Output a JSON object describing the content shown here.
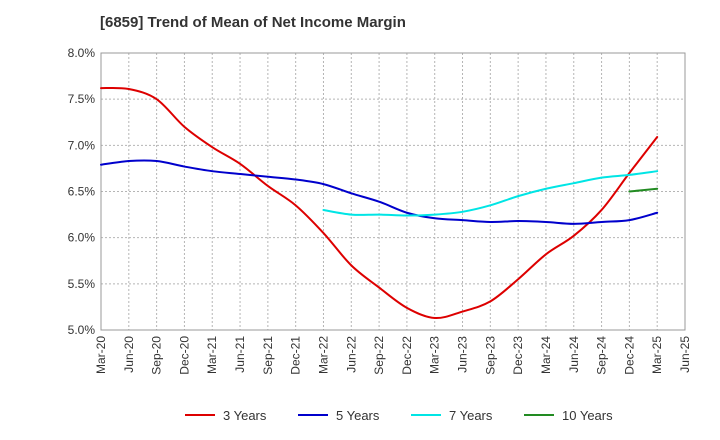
{
  "chart_data": {
    "type": "line",
    "title": "[6859]  Trend of Mean of Net Income Margin",
    "xlabel": "",
    "ylabel": "",
    "ylim": [
      5.0,
      8.0
    ],
    "y_ticks": [
      "5.0%",
      "5.5%",
      "6.0%",
      "6.5%",
      "7.0%",
      "7.5%",
      "8.0%"
    ],
    "y_tick_values": [
      5.0,
      5.5,
      6.0,
      6.5,
      7.0,
      7.5,
      8.0
    ],
    "x_ticks": [
      "Mar-20",
      "Jun-20",
      "Sep-20",
      "Dec-20",
      "Mar-21",
      "Jun-21",
      "Sep-21",
      "Dec-21",
      "Mar-22",
      "Jun-22",
      "Sep-22",
      "Dec-22",
      "Mar-23",
      "Jun-23",
      "Sep-23",
      "Dec-23",
      "Mar-24",
      "Jun-24",
      "Sep-24",
      "Dec-24",
      "Mar-25",
      "Jun-25"
    ],
    "grid": true,
    "legend_position": "bottom",
    "series": [
      {
        "name": "3 Years",
        "color": "#dd0000",
        "x": [
          "Mar-20",
          "Jun-20",
          "Sep-20",
          "Dec-20",
          "Mar-21",
          "Jun-21",
          "Sep-21",
          "Dec-21",
          "Mar-22",
          "Jun-22",
          "Sep-22",
          "Dec-22",
          "Mar-23",
          "Jun-23",
          "Sep-23",
          "Dec-23",
          "Mar-24",
          "Jun-24",
          "Sep-24",
          "Dec-24",
          "Mar-25"
        ],
        "values": [
          7.62,
          7.61,
          7.5,
          7.2,
          6.98,
          6.8,
          6.56,
          6.35,
          6.05,
          5.7,
          5.46,
          5.24,
          5.13,
          5.2,
          5.31,
          5.55,
          5.82,
          6.02,
          6.3,
          6.7,
          7.09
        ]
      },
      {
        "name": "5 Years",
        "color": "#0000cc",
        "x": [
          "Mar-20",
          "Jun-20",
          "Sep-20",
          "Dec-20",
          "Mar-21",
          "Jun-21",
          "Sep-21",
          "Dec-21",
          "Mar-22",
          "Jun-22",
          "Sep-22",
          "Dec-22",
          "Mar-23",
          "Jun-23",
          "Sep-23",
          "Dec-23",
          "Mar-24",
          "Jun-24",
          "Sep-24",
          "Dec-24",
          "Mar-25"
        ],
        "values": [
          6.79,
          6.83,
          6.83,
          6.77,
          6.72,
          6.69,
          6.66,
          6.63,
          6.58,
          6.48,
          6.39,
          6.27,
          6.21,
          6.19,
          6.17,
          6.18,
          6.17,
          6.15,
          6.17,
          6.19,
          6.27
        ]
      },
      {
        "name": "7 Years",
        "color": "#00e5e5",
        "x": [
          "Mar-22",
          "Jun-22",
          "Sep-22",
          "Dec-22",
          "Mar-23",
          "Jun-23",
          "Sep-23",
          "Dec-23",
          "Mar-24",
          "Jun-24",
          "Sep-24",
          "Dec-24",
          "Mar-25"
        ],
        "values": [
          6.3,
          6.25,
          6.25,
          6.24,
          6.25,
          6.28,
          6.35,
          6.45,
          6.53,
          6.59,
          6.65,
          6.68,
          6.72
        ]
      },
      {
        "name": "10 Years",
        "color": "#228b22",
        "x": [
          "Dec-24",
          "Mar-25"
        ],
        "values": [
          6.5,
          6.53
        ]
      }
    ]
  }
}
